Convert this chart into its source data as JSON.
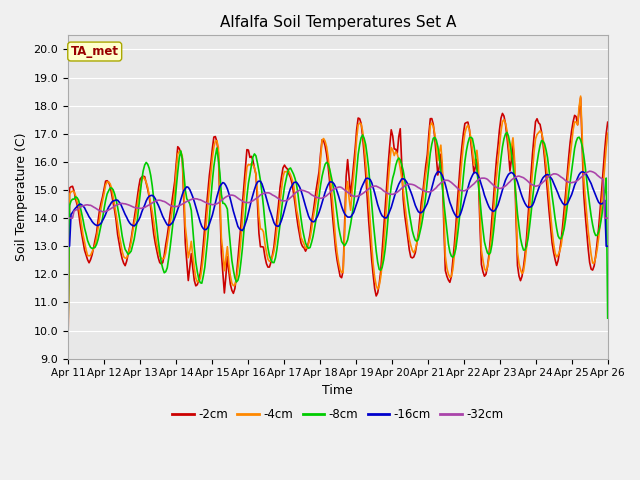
{
  "title": "Alfalfa Soil Temperatures Set A",
  "xlabel": "Time",
  "ylabel": "Soil Temperature (C)",
  "ylim": [
    9.0,
    20.5
  ],
  "yticks": [
    9.0,
    10.0,
    11.0,
    12.0,
    13.0,
    14.0,
    15.0,
    16.0,
    17.0,
    18.0,
    19.0,
    20.0
  ],
  "xtick_labels": [
    "Apr 11",
    "Apr 12",
    "Apr 13",
    "Apr 14",
    "Apr 15",
    "Apr 16",
    "Apr 17",
    "Apr 18",
    "Apr 19",
    "Apr 20",
    "Apr 21",
    "Apr 22",
    "Apr 23",
    "Apr 24",
    "Apr 25",
    "Apr 26"
  ],
  "colors": {
    "-2cm": "#cc0000",
    "-4cm": "#ff8800",
    "-8cm": "#00cc00",
    "-16cm": "#0000cc",
    "-32cm": "#aa44aa"
  },
  "legend_label": "TA_met",
  "background_color": "#e8e8e8",
  "grid_color": "#ffffff",
  "linewidth": 1.2,
  "figsize": [
    6.4,
    4.8
  ],
  "dpi": 100
}
